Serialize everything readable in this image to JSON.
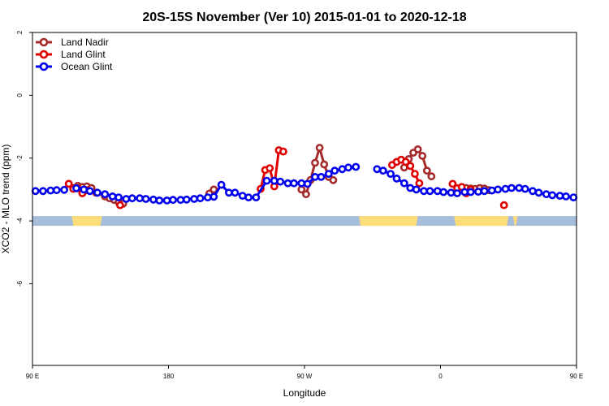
{
  "chart_data": {
    "type": "line",
    "title": "20S-15S November (Ver 10)   2015-01-01 to 2020-12-18",
    "xlabel": "Longitude",
    "ylabel": "XCO2 - MLO trend (ppm)",
    "xlim": [
      90,
      450
    ],
    "ylim": [
      -8.6,
      2
    ],
    "x_ticks": [
      {
        "value": 90,
        "label": "90 E"
      },
      {
        "value": 180,
        "label": "180"
      },
      {
        "value": 270,
        "label": "90 W"
      },
      {
        "value": 360,
        "label": "0"
      },
      {
        "value": 450,
        "label": "90 E"
      },
      {
        "value": 540,
        "label": "180"
      }
    ],
    "y_ticks": [
      {
        "value": 2,
        "label": "2"
      },
      {
        "value": 0,
        "label": "0"
      },
      {
        "value": -2,
        "label": "-2"
      },
      {
        "value": -4,
        "label": "-4"
      },
      {
        "value": -6,
        "label": "-6"
      }
    ],
    "legend_position": "top-left",
    "grid": false,
    "land_mask": {
      "y": -4,
      "ocean_color": "#a6bddb",
      "land_color": "#fddc7a",
      "land_ranges": [
        [
          116,
          136
        ],
        [
          306,
          345
        ],
        [
          369,
          405
        ],
        [
          408,
          411
        ],
        [
          482,
          514
        ]
      ]
    },
    "series": [
      {
        "name": "Land Nadir",
        "color": "#a52a2a",
        "points": [
          [
            117,
            -2.95
          ],
          [
            120,
            -2.88
          ],
          [
            123,
            -2.92
          ],
          [
            126,
            -2.9
          ],
          [
            129,
            -2.95
          ],
          [
            132,
            -3.1
          ],
          [
            138,
            -3.22
          ],
          [
            141,
            -3.28
          ],
          [
            144,
            -3.33
          ],
          [
            147,
            -3.4
          ],
          [
            150,
            -3.45
          ],
          [
            207,
            -3.13
          ],
          [
            210,
            -3.0
          ],
          [
            268,
            -3.0
          ],
          [
            271,
            -3.15
          ],
          [
            274,
            -2.7
          ],
          [
            277,
            -2.15
          ],
          [
            280,
            -1.67
          ],
          [
            283,
            -2.2
          ],
          [
            286,
            -2.6
          ],
          [
            289,
            -2.7
          ],
          [
            336,
            -2.3
          ],
          [
            339,
            -2.03
          ],
          [
            342,
            -1.83
          ],
          [
            345,
            -1.72
          ],
          [
            348,
            -1.93
          ],
          [
            351,
            -2.4
          ],
          [
            354,
            -2.58
          ],
          [
            374,
            -2.92
          ],
          [
            377,
            -2.95
          ],
          [
            380,
            -2.97
          ],
          [
            383,
            -2.98
          ],
          [
            386,
            -2.95
          ],
          [
            389,
            -2.97
          ],
          [
            392,
            -3.02
          ]
        ]
      },
      {
        "name": "Land Glint",
        "color": "#e00000",
        "points": [
          [
            114,
            -2.82
          ],
          [
            117,
            -2.98
          ],
          [
            120,
            -2.96
          ],
          [
            123,
            -3.12
          ],
          [
            126,
            -3.02
          ],
          [
            148,
            -3.5
          ],
          [
            241,
            -2.98
          ],
          [
            244,
            -2.38
          ],
          [
            247,
            -2.32
          ],
          [
            250,
            -2.9
          ],
          [
            253,
            -1.75
          ],
          [
            256,
            -1.79
          ],
          [
            328,
            -2.22
          ],
          [
            331,
            -2.12
          ],
          [
            334,
            -2.05
          ],
          [
            337,
            -2.12
          ],
          [
            340,
            -2.25
          ],
          [
            343,
            -2.5
          ],
          [
            346,
            -2.8
          ],
          [
            368,
            -2.82
          ],
          [
            371,
            -2.96
          ],
          [
            374,
            -2.92
          ],
          [
            377,
            -3.12
          ],
          [
            380,
            -3.0
          ],
          [
            402,
            -3.5
          ]
        ]
      },
      {
        "name": "Ocean Glint",
        "color": "#0000ee",
        "points": [
          [
            92,
            -3.05
          ],
          [
            97,
            -3.05
          ],
          [
            102,
            -3.03
          ],
          [
            106,
            -3.02
          ],
          [
            111,
            -3.01
          ],
          [
            119,
            -2.96
          ],
          [
            124,
            -3.0
          ],
          [
            128,
            -3.05
          ],
          [
            133,
            -3.1
          ],
          [
            138,
            -3.15
          ],
          [
            143,
            -3.22
          ],
          [
            147,
            -3.25
          ],
          [
            152,
            -3.3
          ],
          [
            156,
            -3.28
          ],
          [
            161,
            -3.28
          ],
          [
            165,
            -3.3
          ],
          [
            170,
            -3.32
          ],
          [
            174,
            -3.35
          ],
          [
            179,
            -3.35
          ],
          [
            183,
            -3.33
          ],
          [
            188,
            -3.33
          ],
          [
            192,
            -3.32
          ],
          [
            197,
            -3.3
          ],
          [
            201,
            -3.28
          ],
          [
            206,
            -3.25
          ],
          [
            210,
            -3.23
          ],
          [
            215,
            -2.85
          ],
          [
            220,
            -3.1
          ],
          [
            224,
            -3.1
          ],
          [
            229,
            -3.2
          ],
          [
            233,
            -3.25
          ],
          [
            238,
            -3.25
          ],
          [
            245,
            -2.72
          ],
          [
            250,
            -2.72
          ],
          [
            254,
            -2.75
          ],
          [
            259,
            -2.8
          ],
          [
            263,
            -2.8
          ],
          [
            268,
            -2.8
          ],
          [
            272,
            -2.82
          ],
          [
            277,
            -2.6
          ],
          [
            281,
            -2.6
          ],
          [
            286,
            -2.5
          ],
          [
            290,
            -2.4
          ],
          [
            295,
            -2.35
          ],
          [
            299,
            -2.3
          ],
          [
            304,
            -2.28
          ],
          [
            318,
            -2.35
          ],
          [
            322,
            -2.4
          ],
          [
            327,
            -2.5
          ],
          [
            331,
            -2.65
          ],
          [
            336,
            -2.8
          ],
          [
            340,
            -2.95
          ],
          [
            344,
            -3.0
          ],
          [
            349,
            -3.05
          ],
          [
            353,
            -3.05
          ],
          [
            358,
            -3.05
          ],
          [
            362,
            -3.08
          ],
          [
            367,
            -3.1
          ],
          [
            371,
            -3.12
          ],
          [
            376,
            -3.08
          ],
          [
            380,
            -3.08
          ],
          [
            385,
            -3.07
          ],
          [
            389,
            -3.05
          ],
          [
            394,
            -3.03
          ],
          [
            398,
            -3.0
          ],
          [
            403,
            -2.98
          ],
          [
            407,
            -2.95
          ],
          [
            412,
            -2.95
          ],
          [
            416,
            -2.98
          ],
          [
            421,
            -3.05
          ],
          [
            425,
            -3.1
          ],
          [
            430,
            -3.15
          ],
          [
            434,
            -3.18
          ],
          [
            439,
            -3.2
          ],
          [
            443,
            -3.22
          ],
          [
            448,
            -3.25
          ]
        ]
      }
    ]
  }
}
